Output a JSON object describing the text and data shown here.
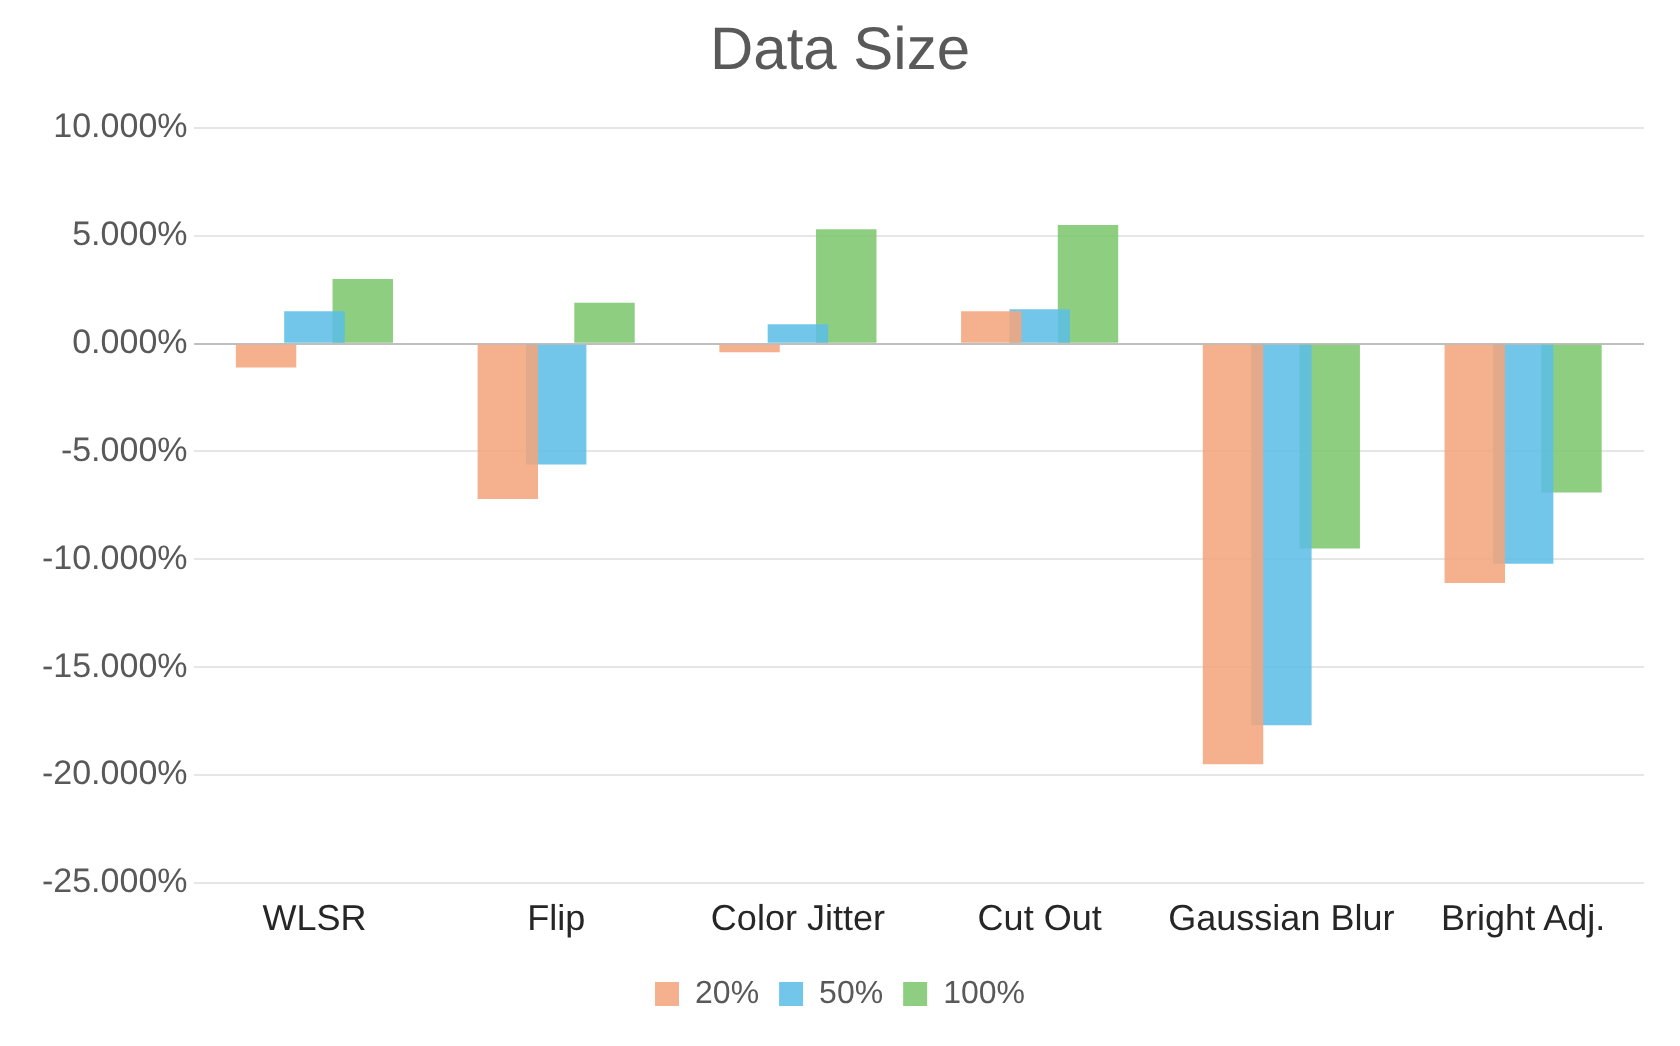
{
  "chart_data": {
    "type": "bar",
    "title": "Data Size",
    "categories": [
      "WLSR",
      "Flip",
      "Color Jitter",
      "Cut Out",
      "Gaussian Blur",
      "Bright Adj."
    ],
    "series": [
      {
        "name": "20%",
        "color": "#f4a57c",
        "values": [
          -1.1,
          -7.2,
          -0.4,
          1.5,
          -19.5,
          -11.1
        ]
      },
      {
        "name": "50%",
        "color": "#5bbde6",
        "values": [
          1.5,
          -5.6,
          0.9,
          1.6,
          -17.7,
          -10.2
        ]
      },
      {
        "name": "100%",
        "color": "#7dc66c",
        "values": [
          3.0,
          1.9,
          5.3,
          5.5,
          -9.5,
          -6.9
        ]
      }
    ],
    "ylim": [
      -25,
      10
    ],
    "yticks": [
      {
        "value": -25,
        "label": "-25.000%"
      },
      {
        "value": -20,
        "label": "-20.000%"
      },
      {
        "value": -15,
        "label": "-15.000%"
      },
      {
        "value": -10,
        "label": "-10.000%"
      },
      {
        "value": -5,
        "label": "-5.000%"
      },
      {
        "value": 0,
        "label": "0.000%"
      },
      {
        "value": 5,
        "label": "5.000%"
      },
      {
        "value": 10,
        "label": "10.000%"
      }
    ],
    "grid": "y",
    "legend": "bottom"
  }
}
